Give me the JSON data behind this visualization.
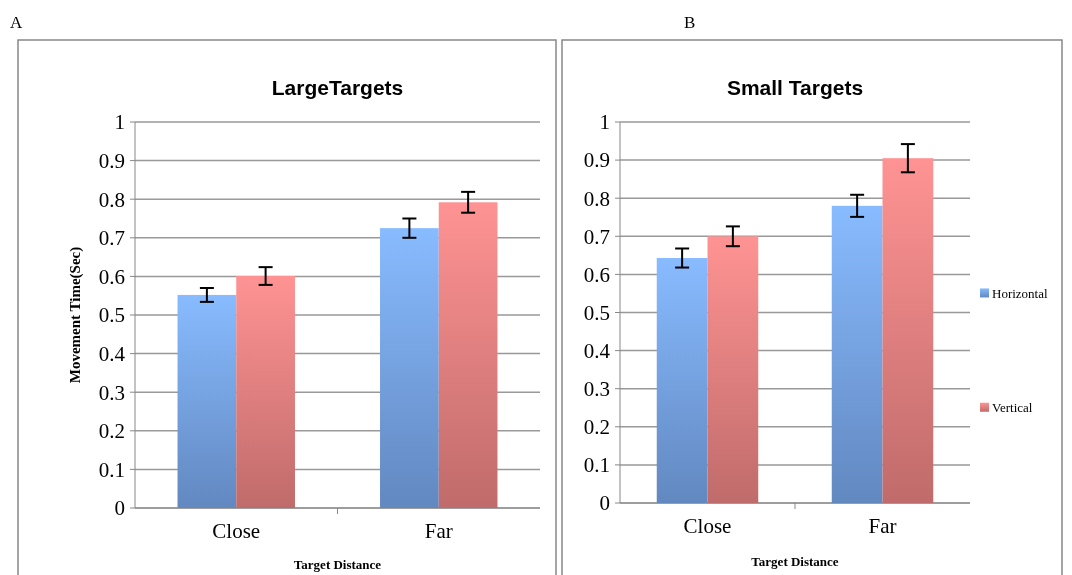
{
  "chart_data": [
    {
      "type": "bar",
      "title": "LargeTargets",
      "xlabel": "Target Distance",
      "ylabel": "Movement Time(Sec)",
      "annotations": [
        "A"
      ],
      "categories": [
        "Close",
        "Far"
      ],
      "series": [
        {
          "color": "#7aa8ee",
          "values": [
            0.552,
            0.725
          ],
          "errors": [
            0.018,
            0.025
          ]
        },
        {
          "color": "#ee8484",
          "values": [
            0.601,
            0.792
          ],
          "errors": [
            0.023,
            0.027
          ]
        }
      ],
      "ylim": [
        0,
        1
      ],
      "yticks": [
        0,
        0.1,
        0.2,
        0.3,
        0.4,
        0.5,
        0.6,
        0.7,
        0.8,
        0.9,
        1
      ],
      "grid": "y",
      "legend": false
    },
    {
      "type": "bar",
      "title": "Small Targets",
      "xlabel": "Target Distance",
      "annotations": [
        "B"
      ],
      "categories": [
        "Close",
        "Far"
      ],
      "series": [
        {
          "name": "Horizontal",
          "color": "#7aa8ee",
          "values": [
            0.643,
            0.78
          ],
          "errors": [
            0.025,
            0.029
          ]
        },
        {
          "name": "Vertical",
          "color": "#ee8484",
          "values": [
            0.7,
            0.905
          ],
          "errors": [
            0.026,
            0.037
          ]
        }
      ],
      "ylim": [
        0,
        1
      ],
      "yticks": [
        0,
        0.1,
        0.2,
        0.3,
        0.4,
        0.5,
        0.6,
        0.7,
        0.8,
        0.9,
        1
      ],
      "grid": "y",
      "legend": "right"
    }
  ]
}
